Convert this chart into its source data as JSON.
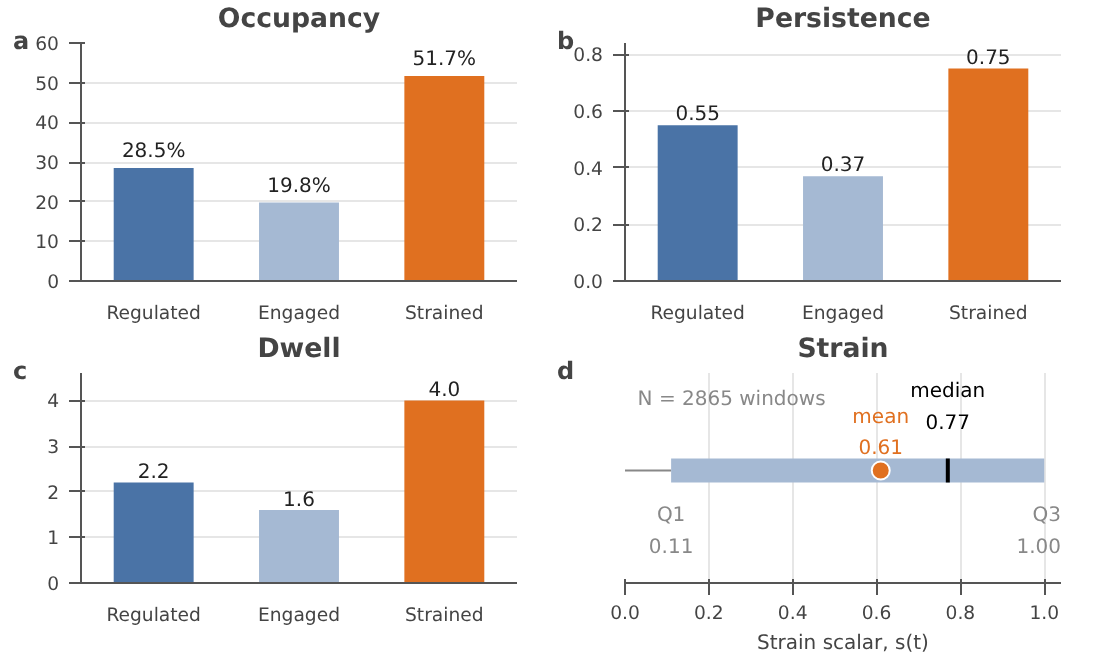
{
  "chart_data": [
    {
      "type": "bar",
      "title": "Occupancy",
      "annotations": [
        "a"
      ],
      "categories": [
        "Regulated",
        "Engaged",
        "Strained"
      ],
      "values": [
        28.5,
        19.8,
        51.7
      ],
      "colors": [
        "#4a73a6",
        "#a5b9d3",
        "#e07020"
      ],
      "value_labels": [
        "28.5%",
        "19.8%",
        "51.7%"
      ],
      "ylim": [
        0,
        60
      ],
      "yticks": [
        0,
        10,
        20,
        30,
        40,
        50,
        60
      ],
      "grid": "y"
    },
    {
      "type": "bar",
      "title": "Persistence",
      "annotations": [
        "b"
      ],
      "categories": [
        "Regulated",
        "Engaged",
        "Strained"
      ],
      "values": [
        0.55,
        0.37,
        0.75
      ],
      "colors": [
        "#4a73a6",
        "#a5b9d3",
        "#e07020"
      ],
      "data_labels": true,
      "ylim": [
        0,
        0.84
      ],
      "yticks": [
        {
          "value": 0,
          "label": "0.0"
        },
        0.2,
        0.4,
        0.6,
        0.8
      ],
      "grid": "y"
    },
    {
      "type": "bar",
      "title": "Dwell",
      "annotations": [
        "c"
      ],
      "categories": [
        "Regulated",
        "Engaged",
        "Strained"
      ],
      "values": [
        2.2,
        1.6,
        4.0
      ],
      "colors": [
        "#4a73a6",
        "#a5b9d3",
        "#e07020"
      ],
      "value_labels": [
        "2.2",
        "1.6",
        "4.0"
      ],
      "ylim": [
        0,
        4.6
      ],
      "yticks": [
        0,
        1,
        2,
        3,
        4
      ],
      "grid": "y"
    },
    {
      "type": "box",
      "title": "Strain",
      "orientation": "horizontal",
      "xlabel": "Strain scalar, s(t)",
      "categories": [
        null
      ],
      "series": [
        {
          "type": "box",
          "color": "#a5b9d3",
          "boxes": [
            {
              "low": 0.0,
              "q1": 0.11,
              "median": 0.77,
              "q3": 1.0,
              "high": 1.0
            }
          ]
        },
        {
          "type": "scatter",
          "color": "#e07020",
          "values": [
            0.61
          ]
        }
      ],
      "annotations": [
        "d",
        "N = 2865 windows",
        "median",
        "0.77",
        "mean",
        "0.61",
        "Q1",
        "0.11",
        "Q3",
        "1.00"
      ],
      "xlim": [
        0,
        1.04
      ],
      "xticks": [
        {
          "value": 0,
          "label": "0.0"
        },
        0.2,
        0.4,
        0.6,
        0.8,
        {
          "value": 1,
          "label": "1.0"
        }
      ],
      "grid": "x"
    }
  ]
}
